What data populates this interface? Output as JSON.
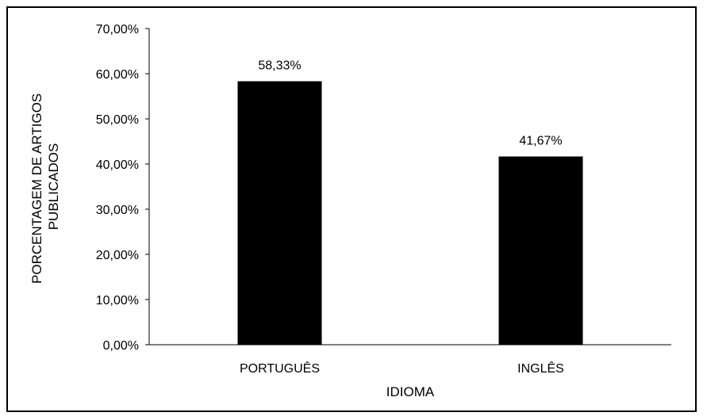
{
  "chart_data": {
    "type": "bar",
    "title": "",
    "xlabel": "IDIOMA",
    "ylabel_lines": [
      "PORCENTAGEM DE ARTIGOS",
      "PUBLICADOS"
    ],
    "categories": [
      "PORTUGUÊS",
      "INGLÊS"
    ],
    "values": [
      58.33,
      41.67
    ],
    "value_labels": [
      "58,33%",
      "41,67%"
    ],
    "ylim": [
      0,
      70
    ],
    "yticks": [
      0,
      10,
      20,
      30,
      40,
      50,
      60,
      70
    ],
    "ytick_labels": [
      "0,00%",
      "10,00%",
      "20,00%",
      "30,00%",
      "40,00%",
      "50,00%",
      "60,00%",
      "70,00%"
    ],
    "grid": false,
    "legend": "none",
    "bar_color": "#000000"
  }
}
